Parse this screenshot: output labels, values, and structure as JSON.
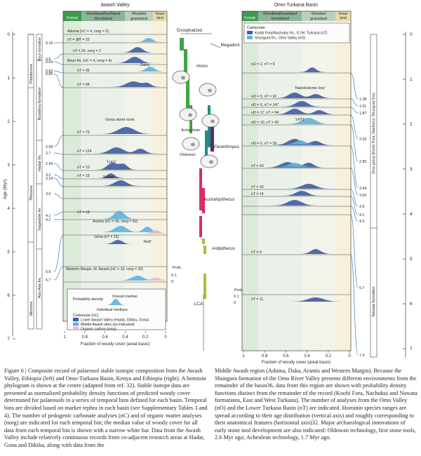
{
  "colors": {
    "forest": "#3f9a4e",
    "woodland": "#8db49a",
    "wooded": "#b9d1bc",
    "grass": "#e8dcae",
    "carbonate_dark": "#3f5c9e",
    "carbonate_light": "#5fb3dd",
    "organic": "#e8b4cd",
    "homo": "#3fa544",
    "megadont": "#1f8d83",
    "paranthropus": "#5b2c6f",
    "australopithecus": "#d62e6a",
    "ardipithecus": "#a9bf3c"
  },
  "left_panel": {
    "title": "Awash Valley",
    "veg_bands": [
      "Forest",
      "Woodland/bushland /shrubland",
      "Wooded grassland",
      "Grass- land"
    ],
    "x_axis_label": "Fraction of woody cover (areal basis)",
    "x_ticks": [
      "1",
      "0.8",
      "0.6",
      "0.4",
      "0.2",
      "0"
    ],
    "age_axis_label": "Age (Myr)",
    "age_ticks": [
      "0",
      "1",
      "2",
      "3",
      "4",
      "5",
      "6",
      "7"
    ],
    "formations": [
      "Bouri formation",
      "Busidima formation",
      "Hadar fm.",
      "Sagantole fm.",
      "Adu-Asa fm."
    ],
    "epochs": [
      "Pleistocene",
      "Pliocene",
      "Miocene"
    ],
    "bin_ages": [
      "0.16",
      "0.6",
      "0.64",
      "0.83",
      "0.85",
      "2.58",
      "2.7",
      "2.94",
      "3.2",
      "3.24",
      "3.6",
      "4.1",
      "4.2",
      "5.5",
      "5.7"
    ],
    "bins": [
      {
        "label": "Aduma (nC = 4, norg = 3)",
        "sub": "nT = 17"
      },
      {
        "label": "nT = 22"
      },
      {
        "label": "nT = 29, norg = 2"
      },
      {
        "label": "Bouri fm. (nC = 4, norg = 4)"
      },
      {
        "label": "nT = 35"
      },
      {
        "label": "nT = 84"
      },
      {
        "label": "nT = 73"
      },
      {
        "label": "nT = 124"
      },
      {
        "label": "nT = 10"
      },
      {
        "label": "nT = 18"
      },
      {
        "label": "nT = 18"
      },
      {
        "label": "Aramis (nC = 35, norg = 50)"
      },
      {
        "label": "Gona (nT = 25)"
      },
      {
        "label": "Western Margin, M. Awash (nC = 19, norg = 32)"
      }
    ],
    "annotations": {
      "daka": "Daka",
      "gona_tools": "Gona stone tools",
      "lucy": "'Lucy'",
      "selam": "'Selam'",
      "ardi": "'Ardi'"
    },
    "prob_label": "Prob.",
    "prob_ticks": [
      "0.1",
      "0"
    ]
  },
  "legend": {
    "prob_density": "Probability density",
    "overall_median": "Overall median",
    "individual_medians": "Individual medians",
    "carbonate_title": "Carbonate (nC)",
    "items": [
      "Lower Awash Valley (Hadar, Dikika, Gona)",
      "Middle Awash sites (as indicated)",
      "Organic carbon (norg)"
    ],
    "organic_prefix": "+/–"
  },
  "center": {
    "encephalized": "Encephalized",
    "megadont": "Megadont",
    "homo": "Homo",
    "acheulean": "Acheulean",
    "oldowan": "Oldowan",
    "paranthropus": "Paranthropus",
    "australopithecus": "Australopithecus",
    "ardipithecus": "Ardipithecus",
    "lca": "LCA"
  },
  "right_panel": {
    "title": "Omo-Turkana Basin",
    "veg_bands": [
      "Forest",
      "Woodland/bushland /shrubland",
      "Wooded grassland",
      "Grass- land"
    ],
    "legend_title": "Carbonate",
    "legend_items": [
      "Koobi Fora/Nachukui fm., E./W. Turkana (nT)",
      "Shungura fm., Omo Valley (nO)"
    ],
    "x_axis_label": "Fraction of woody cover (areal basis)",
    "x_ticks": [
      "1",
      "0.8",
      "0.6",
      "0.4",
      "0.2",
      "0"
    ],
    "formation_axis_label": "Omo group (Koobi Fora, Nachukui, Shungura fms)",
    "nawata": "Nawata formation",
    "age_ticks": [
      "0",
      "1",
      "2",
      "3",
      "4",
      "5",
      "6",
      "7"
    ],
    "bin_ages": [
      "1.38",
      "1.61",
      "1.87",
      "2.33",
      "2.85",
      "3.44",
      "3.60",
      "3.9",
      "4.1",
      "4.3",
      "5.7",
      "7.4"
    ],
    "bins": [
      {
        "label": "nO = 2, nT = 9"
      },
      {
        "label": "nO = 5, nT = 92"
      },
      {
        "label": "nO = 5, nT = 147"
      },
      {
        "label": "nO = 17, nT = 94"
      },
      {
        "label": "nO = 10, nT = 43"
      },
      {
        "label": "nO = 6, nT = 39"
      },
      {
        "label": "nT = 43"
      },
      {
        "label": "nT = 33"
      },
      {
        "label": "nT = 14"
      },
      {
        "label": "nT = 4"
      },
      {
        "label": "nT = 11"
      }
    ],
    "annotations": {
      "narikotome": "'Nariokotome boy'",
      "k1470": "'1470'"
    },
    "prob_label": "Prob.",
    "prob_ticks": [
      "0.1",
      "0"
    ]
  },
  "caption": {
    "left": "Figure 6 | Composite record of palaeosol stable isotopic composition from the Awash Valley, Ethiopia (left) and Omo-Turkana Basin, Kenya and Ethiopia (right). A hominin phylogram is shown at the centre (adapted from ref. 32). Stable isotope data are presented as normalized probability density functions of predicted woody cover determined for palaeosols in a series of temporal bins defined for each basin. Temporal bins are divided based on marker tephra in each basin (see Supplementary Tables 3 and 4). The number of pedogenic carbonate analyses (nC) and of organic matter analyses (norg) are indicated for each temporal bin; the median value of woody cover for all data from each temporal bin is shown with a narrow white bar. Data from the Awash Valley include relatively continuous records from co-adjacent research areas at Hadar, Gona and Dikika, along with data from the",
    "right": "Middle Awash region (Aduma, Daka, Aramis and Western Margin). Because the Shungura formation of the Omo River Valley presents different environments from the remainder of the basin36, data from this region are shown with probability density functions distinct from the remainder of the record (Koobi Fora, Nachukui and Nawata formations, East and West Turkana). The number of analyses from the Omo Valley (nO) and the Lower Turkana Basin (nT) are indicated. Hominin species ranges are spread according to their age distribution (vertical axis) and roughly corresponding to their anatomical features (horizontal axis)32. Major archaeological innovations of early stone tool development are also indicated: Oldowan technology, first stone tools, 2.6 Myr ago; Acheulean technology, 1.7 Myr ago."
  }
}
